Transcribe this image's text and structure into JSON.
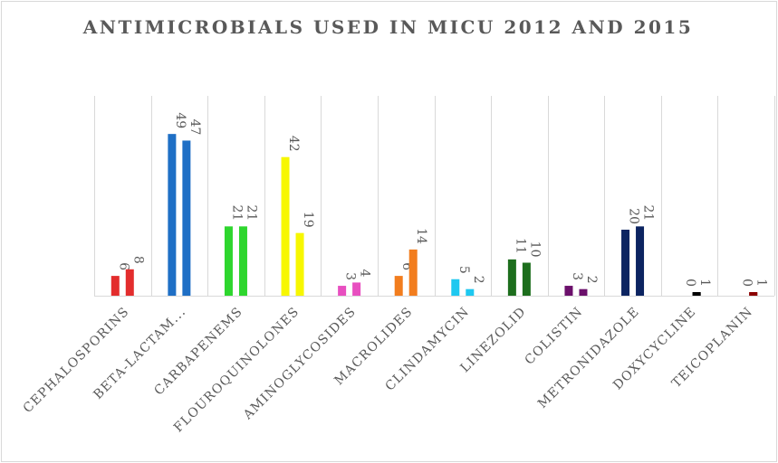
{
  "chart_data": {
    "type": "bar",
    "title": "ANTIMICROBIALS USED IN MICU 2012 AND 2015",
    "categories": [
      "CEPHALOSPORINS",
      "BETA-LACTAM...",
      "CARBAPENEMS",
      "FLOUROQUINOLONES",
      "AMINOGLYCOSIDES",
      "MACROLIDES",
      "CLINDAMYCIN",
      "LINEZOLID",
      "COLISTIN",
      "METRONIDAZOLE",
      "DOXYCYCLINE",
      "TEICOPLANIN"
    ],
    "colors": [
      "#e32d2d",
      "#1f6fc5",
      "#2ed62e",
      "#f7f700",
      "#e84fc0",
      "#f27d1e",
      "#1ec8f0",
      "#1d6e1d",
      "#6b106b",
      "#0c2461",
      "#000000",
      "#8b0000"
    ],
    "series": [
      {
        "values": [
          6,
          49,
          21,
          42,
          3,
          6,
          5,
          11,
          3,
          20,
          0,
          0
        ]
      },
      {
        "values": [
          8,
          47,
          21,
          19,
          4,
          14,
          2,
          10,
          2,
          21,
          1,
          1
        ]
      }
    ],
    "ylim": [
      0,
      55
    ],
    "grid": "vertical category separators",
    "legend": "none",
    "data_labels": true
  }
}
